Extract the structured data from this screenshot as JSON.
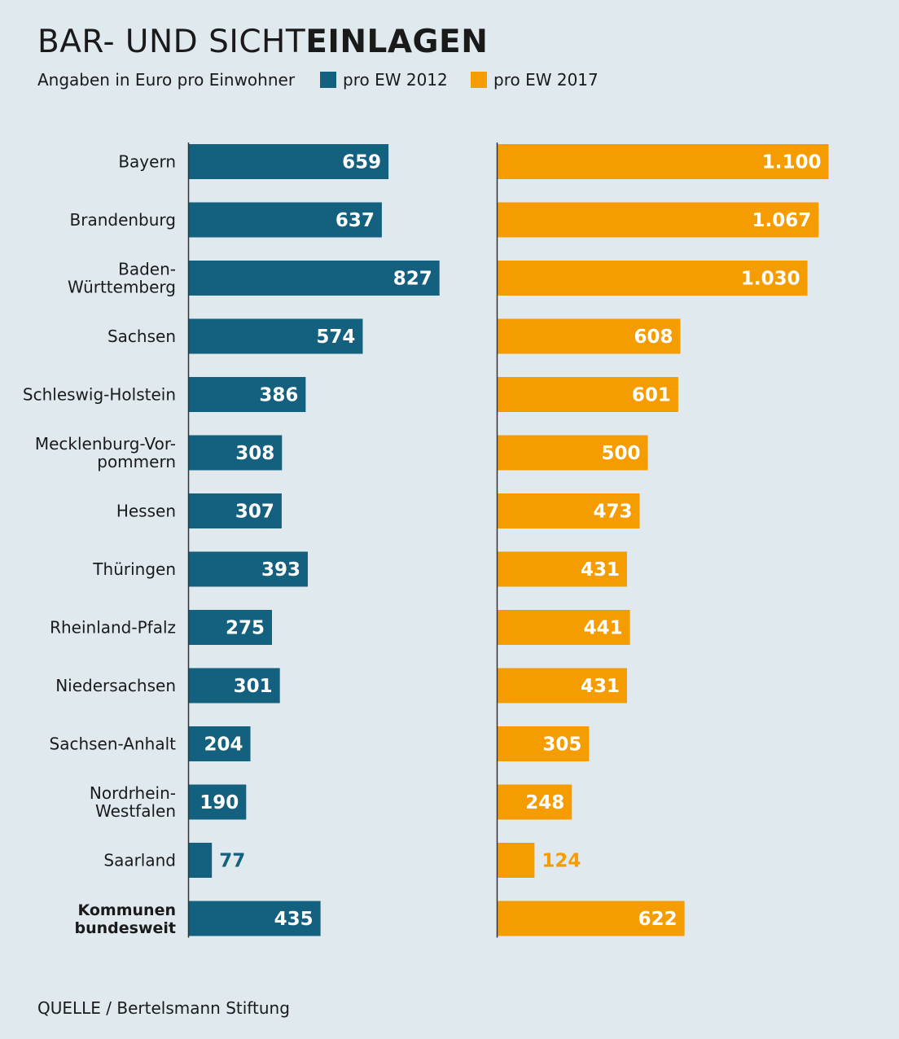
{
  "header": {
    "title_thin": "BAR- UND SICHT",
    "title_bold": "EINLAGEN",
    "subtitle": "Angaben in Euro pro Einwohner"
  },
  "legend": [
    {
      "label": "pro EW 2012",
      "color": "#14607f"
    },
    {
      "label": "pro EW 2017",
      "color": "#f59c00"
    }
  ],
  "source": "QUELLE / Bertelsmann Stiftung",
  "chart_data": {
    "type": "bar",
    "orientation": "horizontal",
    "title": "BAR- UND SICHTEINLAGEN",
    "subtitle": "Angaben in Euro pro Einwohner",
    "categories": [
      [
        "Bayern"
      ],
      [
        "Brandenburg"
      ],
      [
        "Baden-",
        "Württemberg"
      ],
      [
        "Sachsen"
      ],
      [
        "Schleswig-Holstein"
      ],
      [
        "Mecklenburg-Vor-",
        "pommern"
      ],
      [
        "Hessen"
      ],
      [
        "Thüringen"
      ],
      [
        "Rheinland-Pfalz"
      ],
      [
        "Niedersachsen"
      ],
      [
        "Sachsen-Anhalt"
      ],
      [
        "Nordrhein-",
        "Westfalen"
      ],
      [
        "Saarland"
      ],
      [
        "Kommunen",
        "bundesweit"
      ]
    ],
    "bold_category_index": 13,
    "series": [
      {
        "name": "pro EW 2012",
        "color": "#14607f",
        "values": [
          659,
          637,
          827,
          574,
          386,
          308,
          307,
          393,
          275,
          301,
          204,
          190,
          77,
          435
        ],
        "labels": [
          "659",
          "637",
          "827",
          "574",
          "386",
          "308",
          "307",
          "393",
          "275",
          "301",
          "204",
          "190",
          "77",
          "435"
        ]
      },
      {
        "name": "pro EW 2017",
        "color": "#f59c00",
        "values": [
          1100,
          1067,
          1030,
          608,
          601,
          500,
          473,
          431,
          441,
          431,
          305,
          248,
          124,
          622
        ],
        "labels": [
          "1.100",
          "1.067",
          "1.030",
          "608",
          "601",
          "500",
          "473",
          "431",
          "441",
          "431",
          "305",
          "248",
          "124",
          "622"
        ]
      }
    ],
    "axis_line_color": "#333333",
    "label_inside_color": "#ffffff"
  }
}
